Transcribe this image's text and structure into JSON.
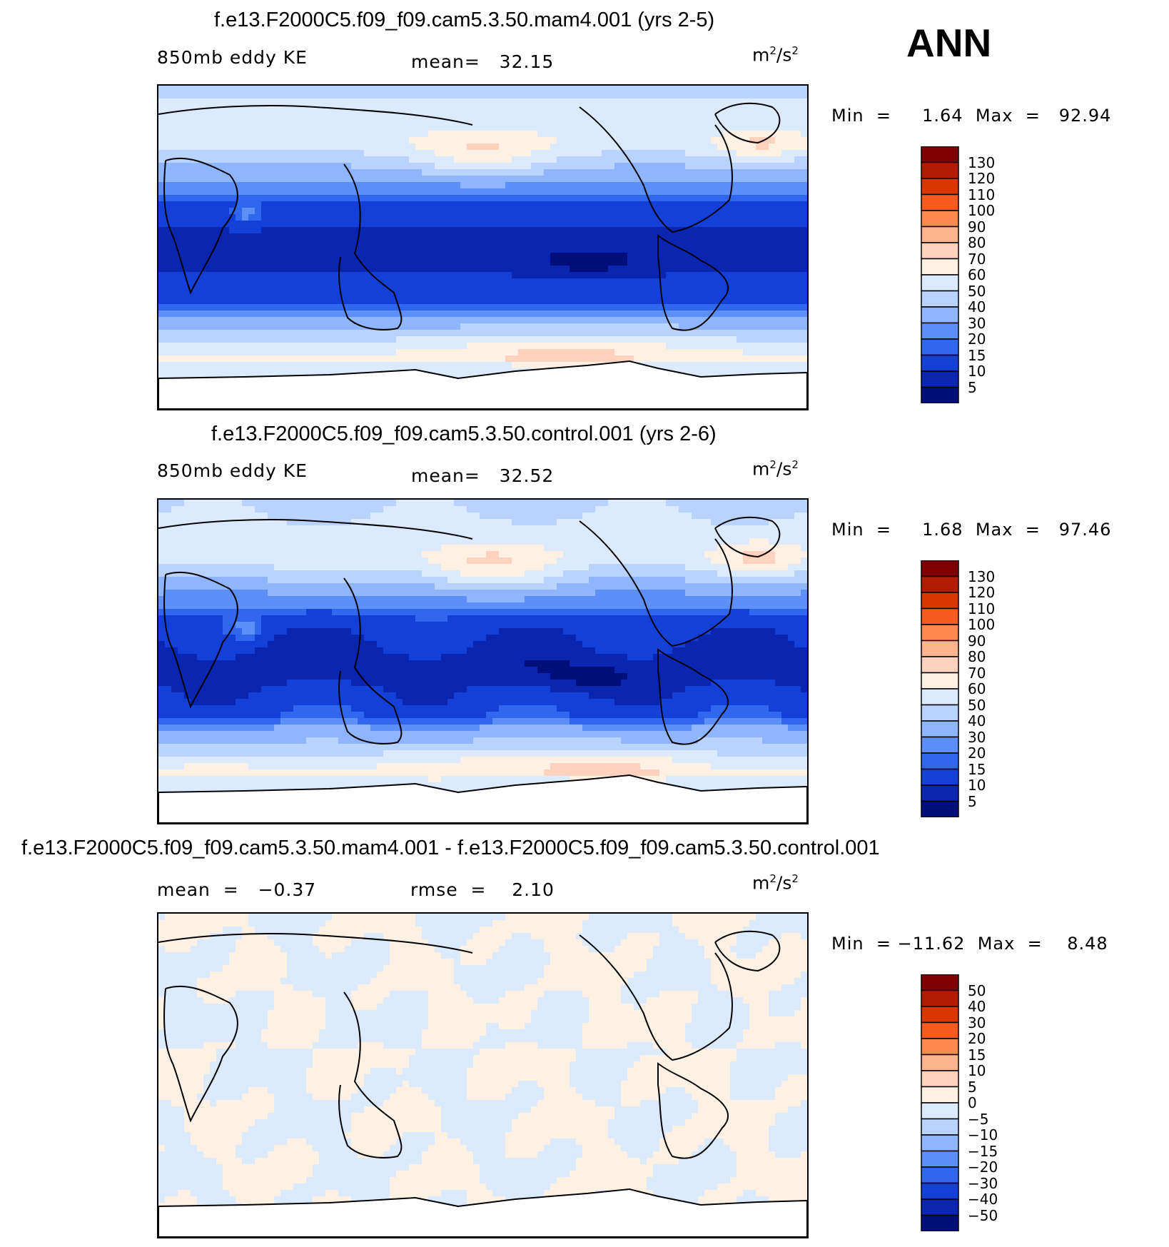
{
  "season": "ANN",
  "panels": [
    {
      "title": "f.e13.F2000C5.f09_f09.cam5.3.50.mam4.001 (yrs 2-5)",
      "left_label": "850mb eddy KE",
      "center_label": "mean=   32.15",
      "units": "m",
      "units_sup1": "2",
      "units_mid": "/s",
      "units_sup2": "2",
      "min_label": "Min  =",
      "min_value": "1.64",
      "max_label": "Max  =",
      "max_value": "92.94",
      "colorbar": {
        "labels": [
          "130",
          "120",
          "110",
          "100",
          "90",
          "80",
          "70",
          "60",
          "50",
          "40",
          "30",
          "20",
          "15",
          "10",
          "5"
        ],
        "colors": [
          "#7f0000",
          "#b21c00",
          "#d93600",
          "#f55a1e",
          "#ff8a50",
          "#ffb38e",
          "#ffd2bd",
          "#fff0e4",
          "#dbeaff",
          "#b9d3ff",
          "#8fb5ff",
          "#5e8ff8",
          "#3166ee",
          "#1540d8",
          "#0a25b0",
          "#000f7a"
        ]
      }
    },
    {
      "title": "f.e13.F2000C5.f09_f09.cam5.3.50.control.001 (yrs 2-6)",
      "left_label": "850mb eddy KE",
      "center_label": "mean=   32.52",
      "units": "m",
      "units_sup1": "2",
      "units_mid": "/s",
      "units_sup2": "2",
      "min_label": "Min  =",
      "min_value": "1.68",
      "max_label": "Max  =",
      "max_value": "97.46",
      "colorbar": {
        "labels": [
          "130",
          "120",
          "110",
          "100",
          "90",
          "80",
          "70",
          "60",
          "50",
          "40",
          "30",
          "20",
          "15",
          "10",
          "5"
        ],
        "colors": [
          "#7f0000",
          "#b21c00",
          "#d93600",
          "#f55a1e",
          "#ff8a50",
          "#ffb38e",
          "#ffd2bd",
          "#fff0e4",
          "#dbeaff",
          "#b9d3ff",
          "#8fb5ff",
          "#5e8ff8",
          "#3166ee",
          "#1540d8",
          "#0a25b0",
          "#000f7a"
        ]
      }
    },
    {
      "title": "f.e13.F2000C5.f09_f09.cam5.3.50.mam4.001 - f.e13.F2000C5.f09_f09.cam5.3.50.control.001",
      "left_label": "mean  =   −0.37",
      "center_label": "rmse  =    2.10",
      "units": "m",
      "units_sup1": "2",
      "units_mid": "/s",
      "units_sup2": "2",
      "min_label": "Min  =",
      "min_value": "−11.62",
      "max_label": "Max  =",
      "max_value": "8.48",
      "colorbar": {
        "labels": [
          "50",
          "40",
          "30",
          "20",
          "15",
          "10",
          "5",
          "0",
          "−5",
          "−10",
          "−15",
          "−20",
          "−30",
          "−40",
          "−50"
        ],
        "colors": [
          "#7f0000",
          "#b21c00",
          "#d93600",
          "#f55a1e",
          "#ff8a50",
          "#ffb38e",
          "#ffd2bd",
          "#fff0e4",
          "#dbeaff",
          "#b9d3ff",
          "#8fb5ff",
          "#5e8ff8",
          "#3166ee",
          "#1540d8",
          "#0a25b0",
          "#000f7a"
        ]
      }
    }
  ],
  "chart_data": [
    {
      "type": "heatmap",
      "title": "f.e13.F2000C5.f09_f09.cam5.3.50.mam4.001 (yrs 2-5)",
      "variable": "850mb eddy KE",
      "units": "m2/s2",
      "mean": 32.15,
      "min": 1.64,
      "max": 92.94,
      "contour_levels": [
        5,
        10,
        15,
        20,
        30,
        40,
        50,
        60,
        70,
        80,
        90,
        100,
        110,
        120,
        130
      ],
      "projection": "cylindrical equidistant, global, centered on Pacific"
    },
    {
      "type": "heatmap",
      "title": "f.e13.F2000C5.f09_f09.cam5.3.50.control.001 (yrs 2-6)",
      "variable": "850mb eddy KE",
      "units": "m2/s2",
      "mean": 32.52,
      "min": 1.68,
      "max": 97.46,
      "contour_levels": [
        5,
        10,
        15,
        20,
        30,
        40,
        50,
        60,
        70,
        80,
        90,
        100,
        110,
        120,
        130
      ],
      "projection": "cylindrical equidistant, global, centered on Pacific"
    },
    {
      "type": "heatmap",
      "title": "f.e13.F2000C5.f09_f09.cam5.3.50.mam4.001 - f.e13.F2000C5.f09_f09.cam5.3.50.control.001",
      "units": "m2/s2",
      "mean": -0.37,
      "rmse": 2.1,
      "min": -11.62,
      "max": 8.48,
      "contour_levels": [
        -50,
        -40,
        -30,
        -20,
        -15,
        -10,
        -5,
        0,
        5,
        10,
        15,
        20,
        30,
        40,
        50
      ],
      "projection": "cylindrical equidistant, global, centered on Pacific"
    }
  ]
}
